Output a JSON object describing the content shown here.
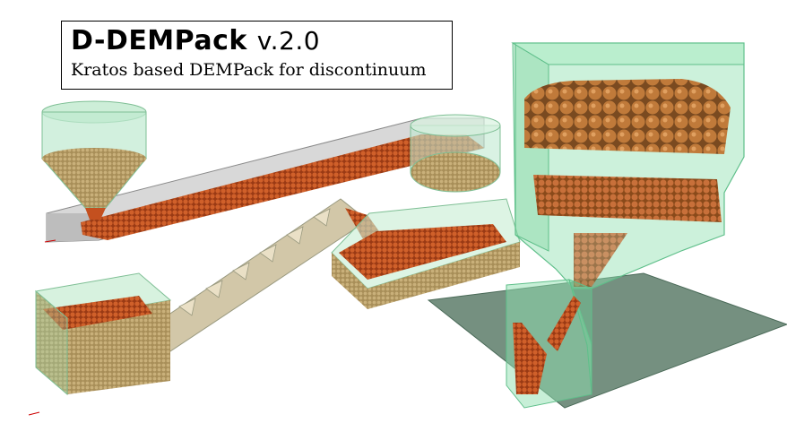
{
  "title": {
    "main": "D-DEMPack",
    "version": "v.2.0",
    "subtitle": "Kratos based DEMPack for discontinuum"
  },
  "colors": {
    "glass": "#8fe0b0",
    "glass_dark": "#5fbf8a",
    "particle_orange": "#c4501f",
    "particle_tan": "#b8a06a",
    "chute_gray": "#9a9a9a",
    "floor_dark": "#5d7d6a"
  }
}
